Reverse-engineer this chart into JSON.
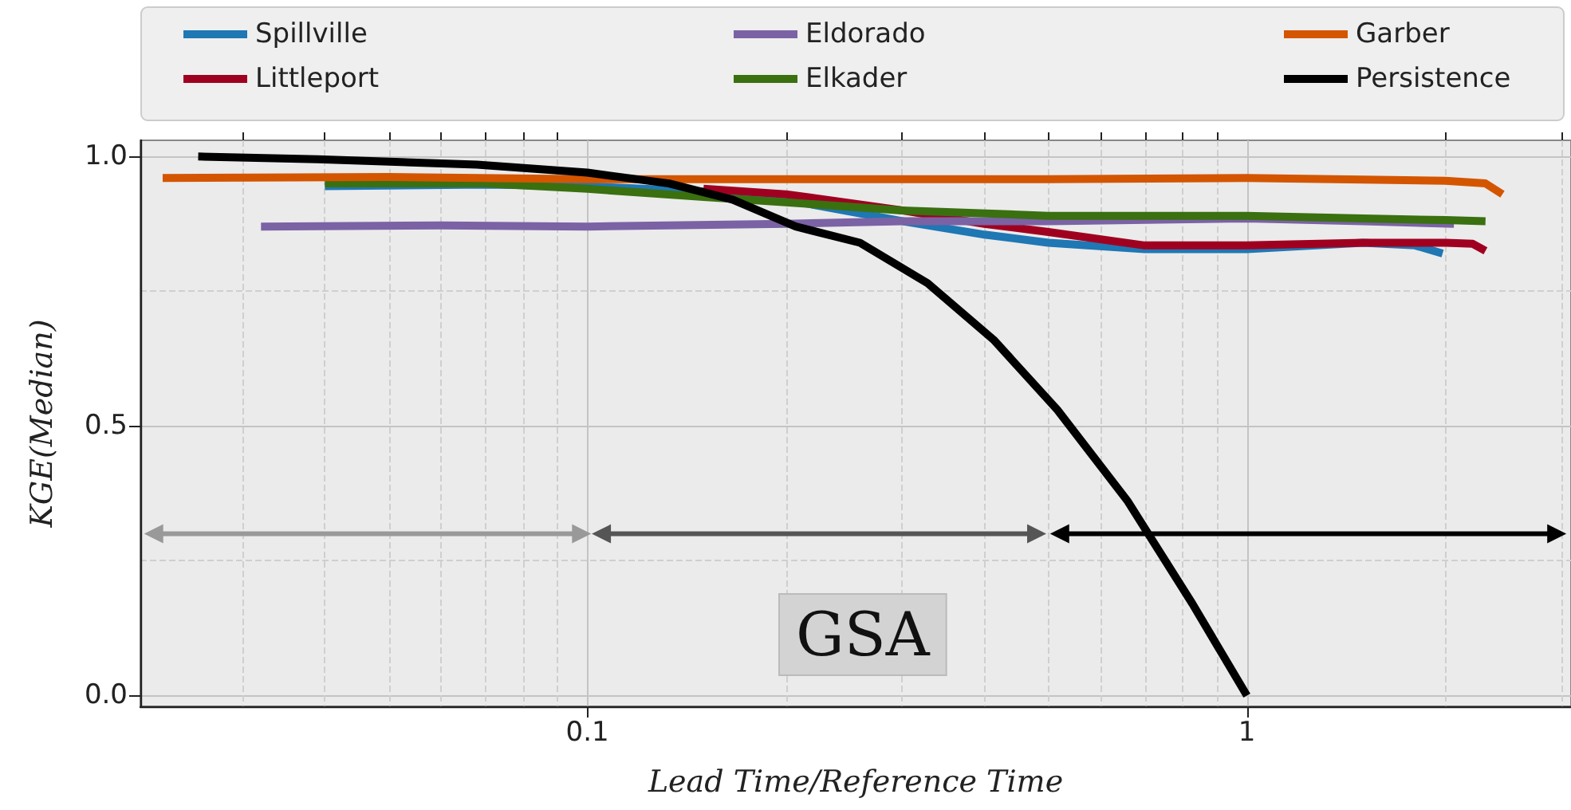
{
  "chart_data": {
    "type": "line",
    "xlabel": "Lead Time/Reference Time",
    "ylabel": "KGE(Median)",
    "annotations": [
      "GSA"
    ],
    "log": "x",
    "grid": true,
    "legend": "top",
    "marker": "none",
    "line_style": "solid",
    "xlim": [
      0.021,
      3.1
    ],
    "ylim": [
      -0.02,
      1.03
    ],
    "xticks": [
      {
        "value": 0.03,
        "label": null
      },
      {
        "value": 0.04,
        "label": null
      },
      {
        "value": 0.05,
        "label": null
      },
      {
        "value": 0.06,
        "label": null
      },
      {
        "value": 0.07,
        "label": null
      },
      {
        "value": 0.08,
        "label": null
      },
      {
        "value": 0.09,
        "label": null
      },
      0.1,
      {
        "value": 0.2,
        "label": null
      },
      {
        "value": 0.3,
        "label": null
      },
      {
        "value": 0.4,
        "label": null
      },
      {
        "value": 0.5,
        "label": null
      },
      {
        "value": 0.6,
        "label": null
      },
      {
        "value": 0.7,
        "label": null
      },
      {
        "value": 0.8,
        "label": null
      },
      {
        "value": 0.9,
        "label": null
      },
      1,
      {
        "value": 2,
        "label": null
      },
      {
        "value": 3,
        "label": null
      }
    ],
    "yticks": [
      {
        "value": 0,
        "label": "0.0"
      },
      {
        "value": 0.25,
        "label": null
      },
      {
        "value": 0.5,
        "label": "0.5"
      },
      {
        "value": 0.75,
        "label": null
      },
      {
        "value": 1,
        "label": "1.0"
      }
    ],
    "series": [
      {
        "name": "Spillville",
        "color": "#1f77b4",
        "x": [
          0.04,
          0.07,
          0.1,
          0.15,
          0.2,
          0.3,
          0.4,
          0.5,
          0.7,
          1,
          1.5,
          1.8,
          1.98
        ],
        "values": [
          0.945,
          0.948,
          0.945,
          0.935,
          0.92,
          0.88,
          0.855,
          0.84,
          0.828,
          0.828,
          0.84,
          0.835,
          0.82
        ]
      },
      {
        "name": "Littleport",
        "color": "#a00020",
        "x": [
          0.15,
          0.2,
          0.3,
          0.4,
          0.5,
          0.7,
          1,
          1.5,
          2,
          2.2,
          2.3
        ],
        "values": [
          0.94,
          0.93,
          0.9,
          0.875,
          0.86,
          0.835,
          0.835,
          0.84,
          0.84,
          0.838,
          0.825
        ]
      },
      {
        "name": "Eldorado",
        "color": "#7b62a5",
        "x": [
          0.032,
          0.06,
          0.1,
          0.2,
          0.3,
          0.5,
          1,
          1.5,
          2.06
        ],
        "values": [
          0.87,
          0.872,
          0.87,
          0.875,
          0.88,
          0.88,
          0.885,
          0.88,
          0.875
        ]
      },
      {
        "name": "Elkader",
        "color": "#3a7010",
        "x": [
          0.04,
          0.07,
          0.1,
          0.15,
          0.2,
          0.3,
          0.5,
          1,
          1.5,
          2,
          2.3
        ],
        "values": [
          0.95,
          0.95,
          0.94,
          0.925,
          0.915,
          0.9,
          0.89,
          0.89,
          0.885,
          0.882,
          0.88
        ]
      },
      {
        "name": "Garber",
        "color": "#d45500",
        "x": [
          0.0227,
          0.05,
          0.1,
          0.2,
          0.5,
          1,
          1.5,
          2,
          2.3,
          2.44
        ],
        "values": [
          0.96,
          0.962,
          0.958,
          0.958,
          0.958,
          0.96,
          0.957,
          0.955,
          0.95,
          0.93
        ]
      },
      {
        "name": "Persistence",
        "color": "#000000",
        "x": [
          0.0257,
          0.039,
          0.068,
          0.1,
          0.133,
          0.166,
          0.207,
          0.259,
          0.328,
          0.413,
          0.516,
          0.66,
          0.827,
          1.0
        ],
        "values": [
          1.0,
          0.995,
          0.985,
          0.97,
          0.95,
          0.92,
          0.87,
          0.84,
          0.765,
          0.66,
          0.53,
          0.36,
          0.17,
          0.0
        ]
      },
      {
        "color": "#999999",
        "marker": "triangle",
        "x": [
          0.022,
          0.098
        ],
        "values": [
          0.3,
          0.3
        ]
      },
      {
        "color": "#555555",
        "marker": "triangle",
        "x": [
          0.105,
          0.48
        ],
        "values": [
          0.3,
          0.3
        ]
      },
      {
        "color": "#000000",
        "marker": "triangle",
        "x": [
          0.52,
          2.95
        ],
        "values": [
          0.3,
          0.3
        ]
      }
    ]
  }
}
